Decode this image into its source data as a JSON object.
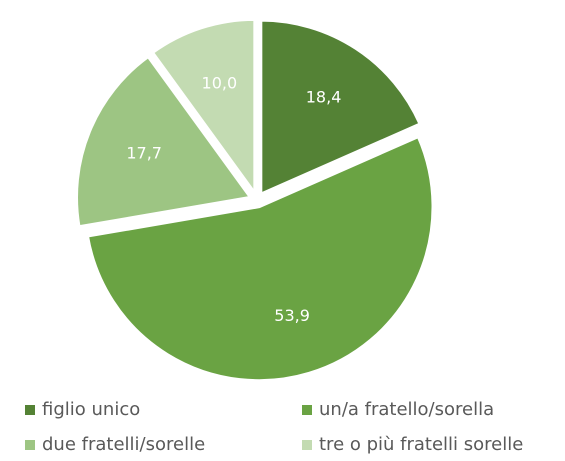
{
  "chart_data": {
    "type": "pie",
    "categories": [
      "figlio unico",
      "un/a fratello/sorella",
      "due fratelli/sorelle",
      "tre o più fratelli sorelle"
    ],
    "values": [
      18.4,
      53.9,
      17.7,
      10.0
    ],
    "value_labels": [
      "18,4",
      "53,9",
      "17,7",
      "10,0"
    ],
    "colors": [
      "#548235",
      "#6aa343",
      "#9dc583",
      "#c3dbb2"
    ],
    "legend": "bottom"
  }
}
